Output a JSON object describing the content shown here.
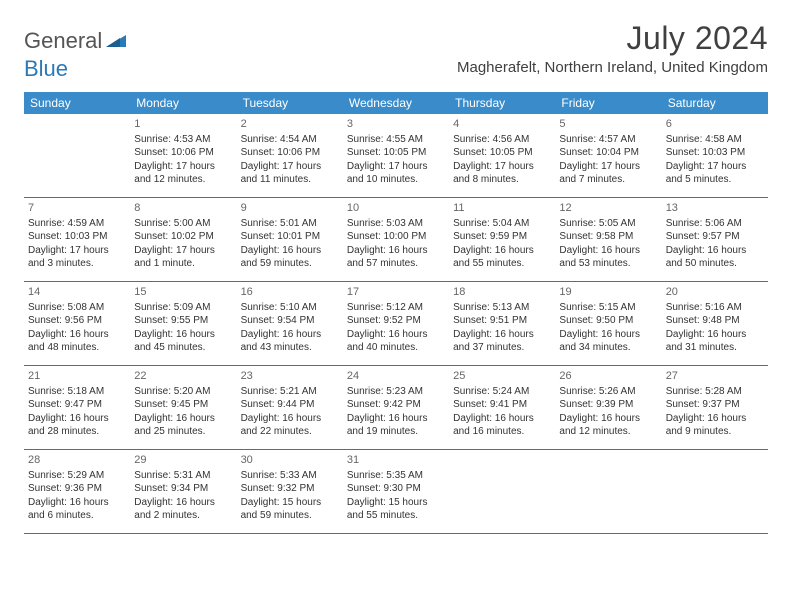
{
  "logo": {
    "text1": "General",
    "text2": "Blue"
  },
  "title": "July 2024",
  "location": "Magherafelt, Northern Ireland, United Kingdom",
  "colors": {
    "header_bg": "#3a8bc9",
    "header_text": "#ffffff",
    "border": "#2a7ab8",
    "body_text": "#333333",
    "daynum_text": "#666666",
    "logo_gray": "#555555",
    "logo_blue": "#2a7ab8",
    "title_color": "#404040"
  },
  "typography": {
    "month_title_size": 32,
    "location_size": 15,
    "day_header_size": 12,
    "cell_size": 10
  },
  "day_headers": [
    "Sunday",
    "Monday",
    "Tuesday",
    "Wednesday",
    "Thursday",
    "Friday",
    "Saturday"
  ],
  "weeks": [
    [
      {
        "num": "",
        "lines": []
      },
      {
        "num": "1",
        "lines": [
          "Sunrise: 4:53 AM",
          "Sunset: 10:06 PM",
          "Daylight: 17 hours and 12 minutes."
        ]
      },
      {
        "num": "2",
        "lines": [
          "Sunrise: 4:54 AM",
          "Sunset: 10:06 PM",
          "Daylight: 17 hours and 11 minutes."
        ]
      },
      {
        "num": "3",
        "lines": [
          "Sunrise: 4:55 AM",
          "Sunset: 10:05 PM",
          "Daylight: 17 hours and 10 minutes."
        ]
      },
      {
        "num": "4",
        "lines": [
          "Sunrise: 4:56 AM",
          "Sunset: 10:05 PM",
          "Daylight: 17 hours and 8 minutes."
        ]
      },
      {
        "num": "5",
        "lines": [
          "Sunrise: 4:57 AM",
          "Sunset: 10:04 PM",
          "Daylight: 17 hours and 7 minutes."
        ]
      },
      {
        "num": "6",
        "lines": [
          "Sunrise: 4:58 AM",
          "Sunset: 10:03 PM",
          "Daylight: 17 hours and 5 minutes."
        ]
      }
    ],
    [
      {
        "num": "7",
        "lines": [
          "Sunrise: 4:59 AM",
          "Sunset: 10:03 PM",
          "Daylight: 17 hours and 3 minutes."
        ]
      },
      {
        "num": "8",
        "lines": [
          "Sunrise: 5:00 AM",
          "Sunset: 10:02 PM",
          "Daylight: 17 hours and 1 minute."
        ]
      },
      {
        "num": "9",
        "lines": [
          "Sunrise: 5:01 AM",
          "Sunset: 10:01 PM",
          "Daylight: 16 hours and 59 minutes."
        ]
      },
      {
        "num": "10",
        "lines": [
          "Sunrise: 5:03 AM",
          "Sunset: 10:00 PM",
          "Daylight: 16 hours and 57 minutes."
        ]
      },
      {
        "num": "11",
        "lines": [
          "Sunrise: 5:04 AM",
          "Sunset: 9:59 PM",
          "Daylight: 16 hours and 55 minutes."
        ]
      },
      {
        "num": "12",
        "lines": [
          "Sunrise: 5:05 AM",
          "Sunset: 9:58 PM",
          "Daylight: 16 hours and 53 minutes."
        ]
      },
      {
        "num": "13",
        "lines": [
          "Sunrise: 5:06 AM",
          "Sunset: 9:57 PM",
          "Daylight: 16 hours and 50 minutes."
        ]
      }
    ],
    [
      {
        "num": "14",
        "lines": [
          "Sunrise: 5:08 AM",
          "Sunset: 9:56 PM",
          "Daylight: 16 hours and 48 minutes."
        ]
      },
      {
        "num": "15",
        "lines": [
          "Sunrise: 5:09 AM",
          "Sunset: 9:55 PM",
          "Daylight: 16 hours and 45 minutes."
        ]
      },
      {
        "num": "16",
        "lines": [
          "Sunrise: 5:10 AM",
          "Sunset: 9:54 PM",
          "Daylight: 16 hours and 43 minutes."
        ]
      },
      {
        "num": "17",
        "lines": [
          "Sunrise: 5:12 AM",
          "Sunset: 9:52 PM",
          "Daylight: 16 hours and 40 minutes."
        ]
      },
      {
        "num": "18",
        "lines": [
          "Sunrise: 5:13 AM",
          "Sunset: 9:51 PM",
          "Daylight: 16 hours and 37 minutes."
        ]
      },
      {
        "num": "19",
        "lines": [
          "Sunrise: 5:15 AM",
          "Sunset: 9:50 PM",
          "Daylight: 16 hours and 34 minutes."
        ]
      },
      {
        "num": "20",
        "lines": [
          "Sunrise: 5:16 AM",
          "Sunset: 9:48 PM",
          "Daylight: 16 hours and 31 minutes."
        ]
      }
    ],
    [
      {
        "num": "21",
        "lines": [
          "Sunrise: 5:18 AM",
          "Sunset: 9:47 PM",
          "Daylight: 16 hours and 28 minutes."
        ]
      },
      {
        "num": "22",
        "lines": [
          "Sunrise: 5:20 AM",
          "Sunset: 9:45 PM",
          "Daylight: 16 hours and 25 minutes."
        ]
      },
      {
        "num": "23",
        "lines": [
          "Sunrise: 5:21 AM",
          "Sunset: 9:44 PM",
          "Daylight: 16 hours and 22 minutes."
        ]
      },
      {
        "num": "24",
        "lines": [
          "Sunrise: 5:23 AM",
          "Sunset: 9:42 PM",
          "Daylight: 16 hours and 19 minutes."
        ]
      },
      {
        "num": "25",
        "lines": [
          "Sunrise: 5:24 AM",
          "Sunset: 9:41 PM",
          "Daylight: 16 hours and 16 minutes."
        ]
      },
      {
        "num": "26",
        "lines": [
          "Sunrise: 5:26 AM",
          "Sunset: 9:39 PM",
          "Daylight: 16 hours and 12 minutes."
        ]
      },
      {
        "num": "27",
        "lines": [
          "Sunrise: 5:28 AM",
          "Sunset: 9:37 PM",
          "Daylight: 16 hours and 9 minutes."
        ]
      }
    ],
    [
      {
        "num": "28",
        "lines": [
          "Sunrise: 5:29 AM",
          "Sunset: 9:36 PM",
          "Daylight: 16 hours and 6 minutes."
        ]
      },
      {
        "num": "29",
        "lines": [
          "Sunrise: 5:31 AM",
          "Sunset: 9:34 PM",
          "Daylight: 16 hours and 2 minutes."
        ]
      },
      {
        "num": "30",
        "lines": [
          "Sunrise: 5:33 AM",
          "Sunset: 9:32 PM",
          "Daylight: 15 hours and 59 minutes."
        ]
      },
      {
        "num": "31",
        "lines": [
          "Sunrise: 5:35 AM",
          "Sunset: 9:30 PM",
          "Daylight: 15 hours and 55 minutes."
        ]
      },
      {
        "num": "",
        "lines": []
      },
      {
        "num": "",
        "lines": []
      },
      {
        "num": "",
        "lines": []
      }
    ]
  ]
}
